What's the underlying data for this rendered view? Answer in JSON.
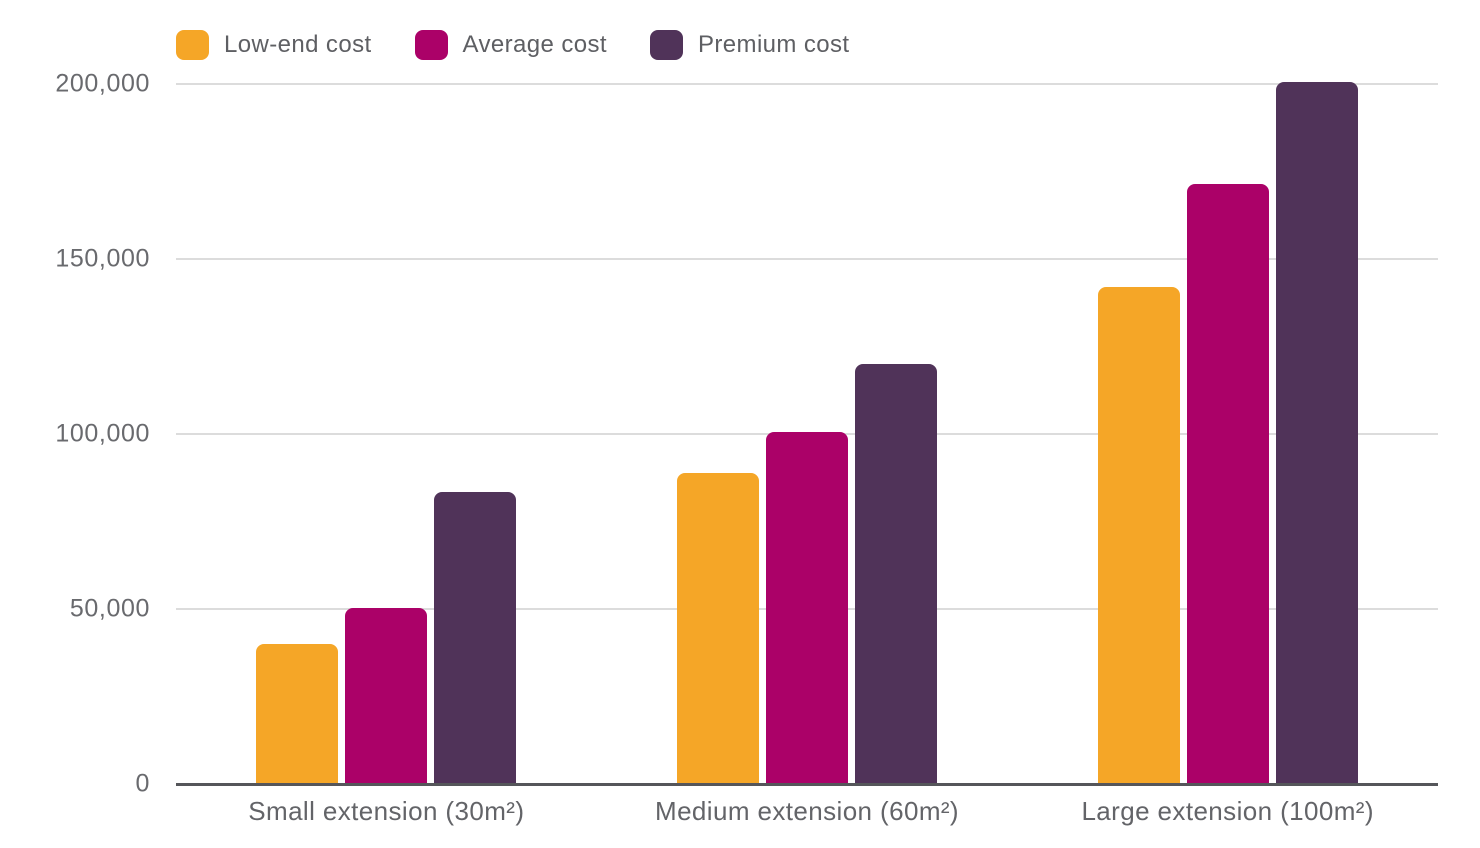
{
  "chart_data": {
    "type": "bar",
    "title": "",
    "categories": [
      "Small extension (30m²)",
      "Medium extension (60m²)",
      "Large extension (100m²)"
    ],
    "series": [
      {
        "name": "Low-end cost",
        "color": "#F5A627",
        "values": [
          40000,
          89000,
          142000
        ]
      },
      {
        "name": "Average cost",
        "color": "#AB0168",
        "values": [
          50250,
          100500,
          171500
        ]
      },
      {
        "name": "Premium cost",
        "color": "#503359",
        "values": [
          83500,
          120000,
          200500
        ]
      }
    ],
    "y_axis": {
      "min": 0,
      "max": 200000,
      "tick_step": 50000,
      "tick_values": [
        0,
        50000,
        100000,
        150000,
        200000
      ],
      "tick_labels": [
        "0",
        "50,000",
        "100,000",
        "150,000",
        "200,000"
      ]
    },
    "xlabel": "",
    "ylabel": "",
    "legend_position": "top-left",
    "grid": true
  },
  "style": {
    "background": "#FFFFFF",
    "grid_color": "#DCDCDC",
    "axis_line_color": "#55565A",
    "y_tick_label_color": "#696A6E",
    "x_label_color": "#636468",
    "legend_text_color": "#5E5F63"
  }
}
